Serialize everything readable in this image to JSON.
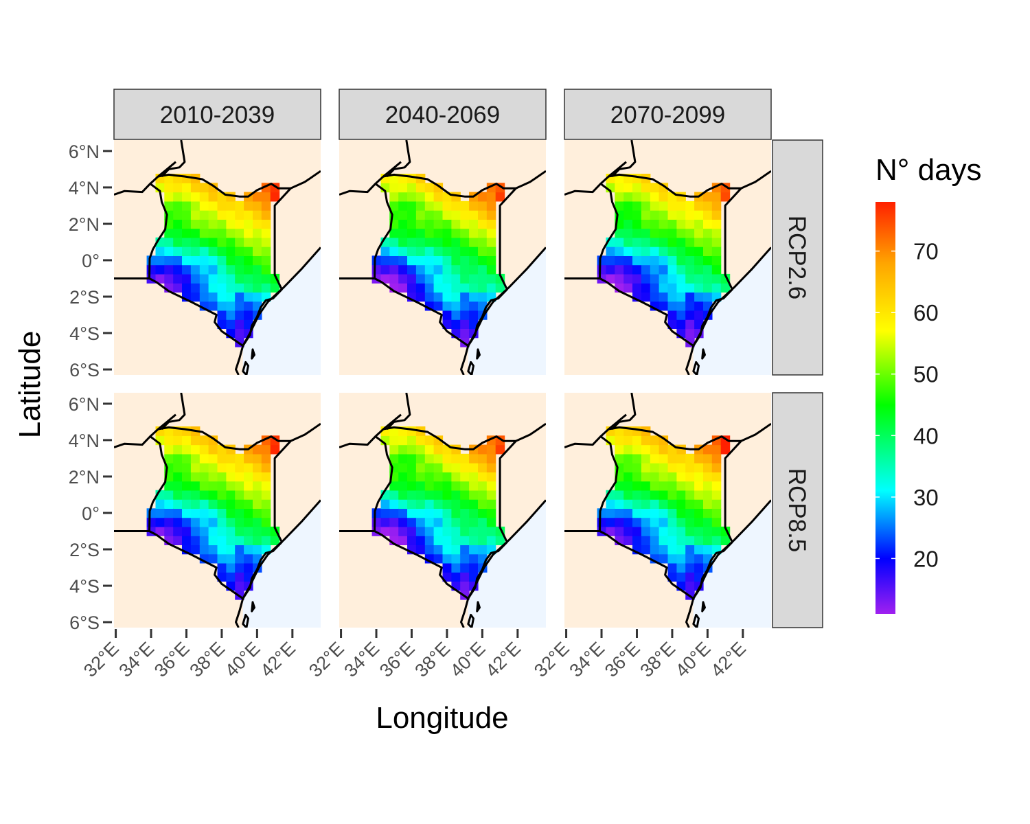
{
  "strips": {
    "columns": [
      "2010-2039",
      "2040-2069",
      "2070-2099"
    ],
    "rows": [
      "RCP2.6",
      "RCP8.5"
    ]
  },
  "axes": {
    "xlabel": "Longitude",
    "ylabel": "Latitude",
    "x_ticks": [
      "32°E",
      "34°E",
      "36°E",
      "38°E",
      "40°E",
      "42°E"
    ],
    "y_ticks": [
      "6°N",
      "4°N",
      "2°N",
      "0°",
      "2°S",
      "4°S",
      "6°S"
    ]
  },
  "legend": {
    "title": "N° days",
    "ticks": [
      "70",
      "60",
      "50",
      "40",
      "30",
      "20"
    ],
    "colors": [
      "#a020f0",
      "#0000ff",
      "#00ffff",
      "#00ff00",
      "#ffff00",
      "#ffa500",
      "#ff2000"
    ]
  },
  "colors": {
    "land": "#ffefdc",
    "sea": "#eef6ff",
    "strip_bg": "#d9d9d9",
    "border": "#000000"
  },
  "chart_data": {
    "type": "heatmap",
    "description_of_panels": "Facets: columns = period, rows = scenario",
    "value_range": [
      11,
      78
    ],
    "xlim": [
      31.9,
      43.6
    ],
    "ylim": [
      -6.3,
      6.6
    ],
    "panels": [
      {
        "period": "2010-2039",
        "scenario": "RCP2.6",
        "northeast_max": 75,
        "west_min": 12
      },
      {
        "period": "2040-2069",
        "scenario": "RCP2.6",
        "northeast_max": 72,
        "west_min": 13
      },
      {
        "period": "2070-2099",
        "scenario": "RCP2.6",
        "northeast_max": 70,
        "west_min": 14
      },
      {
        "period": "2010-2039",
        "scenario": "RCP8.5",
        "northeast_max": 75,
        "west_min": 12
      },
      {
        "period": "2040-2069",
        "scenario": "RCP8.5",
        "northeast_max": 72,
        "west_min": 13
      },
      {
        "period": "2070-2099",
        "scenario": "RCP8.5",
        "northeast_max": 78,
        "west_min": 14
      }
    ]
  }
}
